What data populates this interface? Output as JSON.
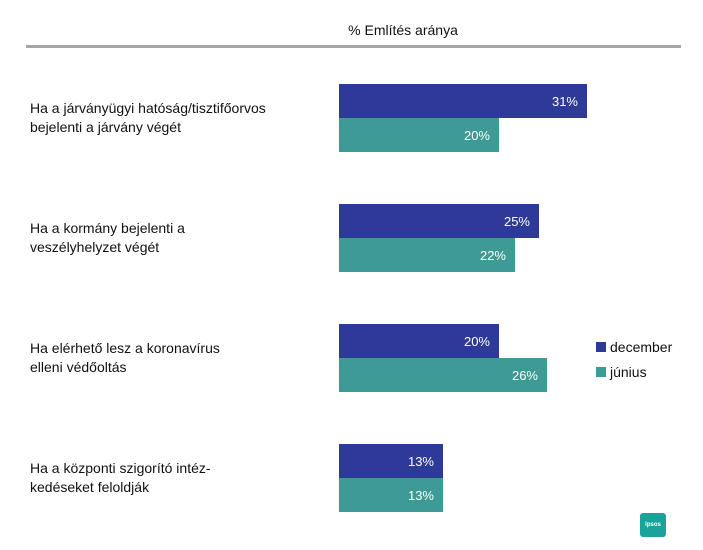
{
  "chart_data": {
    "type": "bar",
    "orientation": "horizontal",
    "title": "% Említés aránya",
    "categories": [
      [
        "Ha a járványügyi hatóság/tisztifőorvos",
        "bejelenti a járvány végét"
      ],
      [
        "Ha a kormány bejelenti a",
        "veszélyhelyzet végét"
      ],
      [
        "Ha elérhető lesz a koronavírus",
        "elleni védőoltás"
      ],
      [
        "Ha a központi szigorító intéz-",
        "kedéseket feloldják"
      ]
    ],
    "series": [
      {
        "name": "december",
        "color": "#2e3a97",
        "values": [
          31,
          25,
          20,
          13
        ],
        "labels": [
          "31%",
          "25%",
          "20%",
          "13%"
        ]
      },
      {
        "name": "június",
        "color": "#3e9a94",
        "values": [
          20,
          22,
          26,
          13
        ],
        "labels": [
          "20%",
          "22%",
          "26%",
          "13%"
        ]
      }
    ],
    "xlim": [
      0,
      100
    ],
    "grid": false,
    "legend_position": "right"
  },
  "logo": {
    "text": "Ipsos",
    "color": "#1aa39a"
  }
}
